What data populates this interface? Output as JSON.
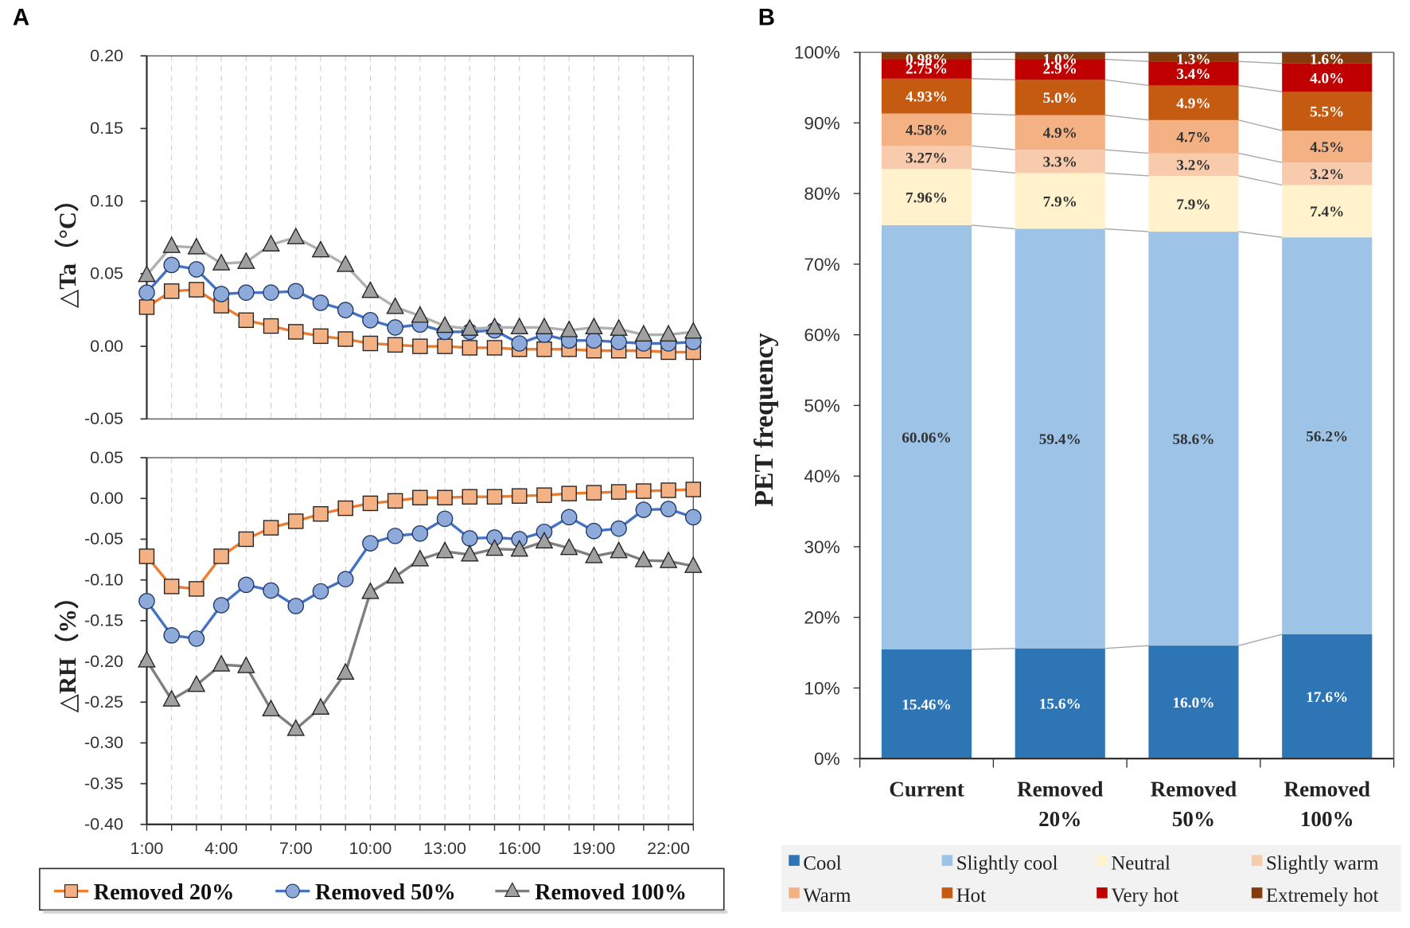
{
  "panels": {
    "a_label": "A",
    "b_label": "B"
  },
  "chart_data": [
    {
      "type": "line",
      "panel": "A-top",
      "title": "",
      "xlabel": "",
      "ylabel": "△Ta（°C）",
      "ylim": [
        -0.05,
        0.2
      ],
      "yticks": [
        "0.20",
        "0.15",
        "0.10",
        "0.05",
        "0.00",
        "-0.05"
      ],
      "ytick_values": [
        0.2,
        0.15,
        0.1,
        0.05,
        0.0,
        -0.05
      ],
      "x": [
        "1:00",
        "2:00",
        "3:00",
        "4:00",
        "5:00",
        "6:00",
        "7:00",
        "8:00",
        "9:00",
        "10:00",
        "11:00",
        "12:00",
        "13:00",
        "14:00",
        "15:00",
        "16:00",
        "17:00",
        "18:00",
        "19:00",
        "20:00",
        "21:00",
        "22:00",
        "23:00"
      ],
      "grid": "vertical-dashed",
      "series": [
        {
          "name": "Removed 20%",
          "color": "#ed7d31",
          "marker": "square",
          "marker_fill": "#f4b183",
          "values": [
            0.027,
            0.038,
            0.039,
            0.028,
            0.018,
            0.014,
            0.01,
            0.007,
            0.005,
            0.002,
            0.001,
            0.0,
            0.0,
            -0.001,
            -0.001,
            -0.002,
            -0.002,
            -0.002,
            -0.003,
            -0.003,
            -0.003,
            -0.004,
            -0.004
          ]
        },
        {
          "name": "Removed 50%",
          "color": "#4472c4",
          "marker": "circle",
          "marker_fill": "#8eaadb",
          "values": [
            0.037,
            0.056,
            0.053,
            0.036,
            0.037,
            0.037,
            0.038,
            0.03,
            0.025,
            0.018,
            0.013,
            0.015,
            0.01,
            0.01,
            0.011,
            0.002,
            0.008,
            0.004,
            0.004,
            0.003,
            0.002,
            0.002,
            0.003
          ]
        },
        {
          "name": "Removed 100%",
          "color": "#b0b0b0",
          "marker": "triangle",
          "marker_fill": "#a0a0a0",
          "values": [
            0.049,
            0.069,
            0.068,
            0.057,
            0.058,
            0.07,
            0.075,
            0.066,
            0.056,
            0.038,
            0.027,
            0.021,
            0.014,
            0.012,
            0.013,
            0.013,
            0.013,
            0.011,
            0.013,
            0.012,
            0.008,
            0.008,
            0.01
          ]
        }
      ]
    },
    {
      "type": "line",
      "panel": "A-bottom",
      "title": "",
      "xlabel": "",
      "ylabel": "△RH（%）",
      "ylim": [
        -0.4,
        0.05
      ],
      "yticks": [
        "0.05",
        "0.00",
        "-0.05",
        "-0.10",
        "-0.15",
        "-0.20",
        "-0.25",
        "-0.30",
        "-0.35",
        "-0.40"
      ],
      "ytick_values": [
        0.05,
        0.0,
        -0.05,
        -0.1,
        -0.15,
        -0.2,
        -0.25,
        -0.3,
        -0.35,
        -0.4
      ],
      "x": [
        "1:00",
        "2:00",
        "3:00",
        "4:00",
        "5:00",
        "6:00",
        "7:00",
        "8:00",
        "9:00",
        "10:00",
        "11:00",
        "12:00",
        "13:00",
        "14:00",
        "15:00",
        "16:00",
        "17:00",
        "18:00",
        "19:00",
        "20:00",
        "21:00",
        "22:00",
        "23:00"
      ],
      "xtick_labels": [
        "1:00",
        "4:00",
        "7:00",
        "10:00",
        "13:00",
        "16:00",
        "19:00",
        "22:00"
      ],
      "grid": "vertical-dashed",
      "series": [
        {
          "name": "Removed 20%",
          "color": "#ed7d31",
          "marker": "square",
          "marker_fill": "#f4b183",
          "values": [
            -0.071,
            -0.108,
            -0.111,
            -0.071,
            -0.05,
            -0.036,
            -0.028,
            -0.019,
            -0.012,
            -0.006,
            -0.003,
            0.001,
            0.001,
            0.002,
            0.002,
            0.003,
            0.004,
            0.006,
            0.007,
            0.008,
            0.009,
            0.01,
            0.011
          ]
        },
        {
          "name": "Removed 50%",
          "color": "#4472c4",
          "marker": "circle",
          "marker_fill": "#8eaadb",
          "values": [
            -0.126,
            -0.168,
            -0.172,
            -0.131,
            -0.106,
            -0.113,
            -0.132,
            -0.114,
            -0.099,
            -0.055,
            -0.046,
            -0.043,
            -0.025,
            -0.049,
            -0.048,
            -0.05,
            -0.041,
            -0.023,
            -0.04,
            -0.037,
            -0.014,
            -0.013,
            -0.023
          ]
        },
        {
          "name": "Removed 100%",
          "color": "#7f7f7f",
          "marker": "triangle",
          "marker_fill": "#a0a0a0",
          "values": [
            -0.199,
            -0.247,
            -0.229,
            -0.204,
            -0.206,
            -0.259,
            -0.283,
            -0.257,
            -0.214,
            -0.115,
            -0.096,
            -0.075,
            -0.065,
            -0.069,
            -0.062,
            -0.063,
            -0.053,
            -0.061,
            -0.071,
            -0.065,
            -0.076,
            -0.077,
            -0.083
          ]
        }
      ],
      "legend": {
        "placement": "bottom",
        "entries": [
          "Removed 20%",
          "Removed 50%",
          "Removed 100%"
        ]
      }
    },
    {
      "type": "bar",
      "stacked": true,
      "normalized": true,
      "panel": "B",
      "title": "",
      "xlabel": "",
      "ylabel": "PET frequency",
      "ylim": [
        0,
        100
      ],
      "yticks": [
        "0%",
        "10%",
        "20%",
        "30%",
        "40%",
        "50%",
        "60%",
        "70%",
        "80%",
        "90%",
        "100%"
      ],
      "categories": [
        {
          "line1": "Current",
          "line2": ""
        },
        {
          "line1": "Removed",
          "line2": "20%"
        },
        {
          "line1": "Removed",
          "line2": "50%"
        },
        {
          "line1": "Removed",
          "line2": "100%"
        }
      ],
      "series": [
        {
          "name": "Cool",
          "color": "#2e75b6",
          "label_color": "#ffffff",
          "values": [
            15.46,
            15.6,
            16.0,
            17.6
          ],
          "labels": [
            "15.46%",
            "15.6%",
            "16.0%",
            "17.6%"
          ]
        },
        {
          "name": "Slightly cool",
          "color": "#9dc3e6",
          "label_color": "#333333",
          "values": [
            60.06,
            59.4,
            58.6,
            56.2
          ],
          "labels": [
            "60.06%",
            "59.4%",
            "58.6%",
            "56.2%"
          ]
        },
        {
          "name": "Neutral",
          "color": "#fff2cc",
          "label_color": "#333333",
          "values": [
            7.96,
            7.9,
            7.9,
            7.4
          ],
          "labels": [
            "7.96%",
            "7.9%",
            "7.9%",
            "7.4%"
          ]
        },
        {
          "name": "Slightly warm",
          "color": "#f8cbad",
          "label_color": "#333333",
          "values": [
            3.27,
            3.3,
            3.2,
            3.2
          ],
          "labels": [
            "3.27%",
            "3.3%",
            "3.2%",
            "3.2%"
          ]
        },
        {
          "name": "Warm",
          "color": "#f4b183",
          "label_color": "#333333",
          "values": [
            4.58,
            4.9,
            4.7,
            4.5
          ],
          "labels": [
            "4.58%",
            "4.9%",
            "4.7%",
            "4.5%"
          ]
        },
        {
          "name": "Hot",
          "color": "#c55a11",
          "label_color": "#ffffff",
          "values": [
            4.93,
            5.0,
            4.9,
            5.5
          ],
          "labels": [
            "4.93%",
            "5.0%",
            "4.9%",
            "5.5%"
          ]
        },
        {
          "name": "Very hot",
          "color": "#c00000",
          "label_color": "#ffffff",
          "values": [
            2.75,
            2.9,
            3.4,
            4.0
          ],
          "labels": [
            "2.75%",
            "2.9%",
            "3.4%",
            "4.0%"
          ]
        },
        {
          "name": "Extremely hot",
          "color": "#843c0c",
          "label_color": "#ffffff",
          "values": [
            0.98,
            1.0,
            1.3,
            1.6
          ],
          "labels": [
            "0.98%",
            "1.0%",
            "1.3%",
            "1.6%"
          ]
        }
      ],
      "series_lines": true,
      "legend": {
        "placement": "bottom",
        "columns": 4
      }
    }
  ]
}
